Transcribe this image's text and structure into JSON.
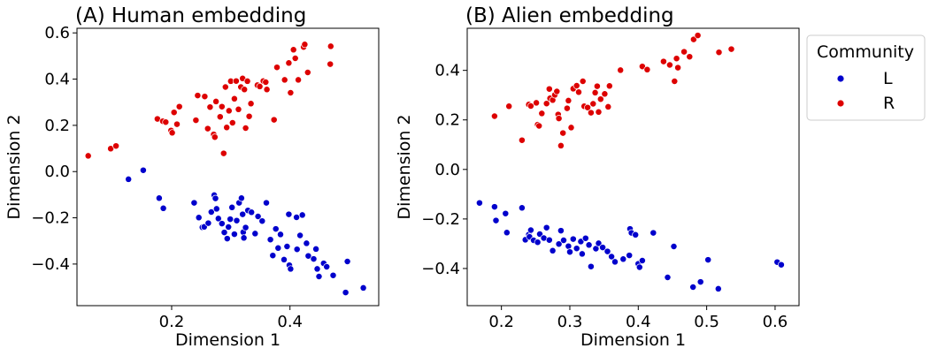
{
  "legend": {
    "title": "Community",
    "entries": [
      {
        "label": "L",
        "color": "#0000cc"
      },
      {
        "label": "R",
        "color": "#dd0000"
      }
    ]
  },
  "chart_data": [
    {
      "type": "scatter",
      "title": "(A) Human embedding",
      "xlabel": "Dimension 1",
      "ylabel": "Dimension 2",
      "xlim": [
        0.04,
        0.55
      ],
      "ylim": [
        -0.58,
        0.62
      ],
      "xticks": [
        0.2,
        0.4
      ],
      "xtick_labels": [
        "0.2",
        "0.4"
      ],
      "yticks": [
        -0.4,
        -0.2,
        0.0,
        0.2,
        0.4,
        0.6
      ],
      "ytick_labels": [
        "−0.4",
        "−0.2",
        "0.0",
        "0.2",
        "0.4",
        "0.6"
      ],
      "grid": false,
      "series": [
        {
          "name": "L",
          "color": "#0000cc",
          "points": [
            [
              0.127,
              -0.033
            ],
            [
              0.152,
              0.006
            ],
            [
              0.179,
              -0.115
            ],
            [
              0.186,
              -0.159
            ],
            [
              0.238,
              -0.135
            ],
            [
              0.246,
              -0.199
            ],
            [
              0.252,
              -0.241
            ],
            [
              0.255,
              -0.239
            ],
            [
              0.262,
              -0.223
            ],
            [
              0.267,
              -0.175
            ],
            [
              0.272,
              -0.102
            ],
            [
              0.274,
              -0.116
            ],
            [
              0.276,
              -0.161
            ],
            [
              0.279,
              -0.203
            ],
            [
              0.285,
              -0.225
            ],
            [
              0.289,
              -0.263
            ],
            [
              0.294,
              -0.29
            ],
            [
              0.296,
              -0.24
            ],
            [
              0.299,
              -0.206
            ],
            [
              0.302,
              -0.155
            ],
            [
              0.306,
              -0.271
            ],
            [
              0.31,
              -0.212
            ],
            [
              0.314,
              -0.135
            ],
            [
              0.318,
              -0.115
            ],
            [
              0.32,
              -0.185
            ],
            [
              0.321,
              -0.262
            ],
            [
              0.322,
              -0.287
            ],
            [
              0.325,
              -0.242
            ],
            [
              0.329,
              -0.168
            ],
            [
              0.335,
              -0.176
            ],
            [
              0.341,
              -0.268
            ],
            [
              0.346,
              -0.194
            ],
            [
              0.353,
              -0.214
            ],
            [
              0.36,
              -0.135
            ],
            [
              0.367,
              -0.294
            ],
            [
              0.371,
              -0.363
            ],
            [
              0.376,
              -0.248
            ],
            [
              0.38,
              -0.331
            ],
            [
              0.384,
              -0.272
            ],
            [
              0.39,
              -0.381
            ],
            [
              0.395,
              -0.324
            ],
            [
              0.398,
              -0.185
            ],
            [
              0.399,
              -0.405
            ],
            [
              0.401,
              -0.421
            ],
            [
              0.411,
              -0.198
            ],
            [
              0.412,
              -0.336
            ],
            [
              0.417,
              -0.276
            ],
            [
              0.421,
              -0.188
            ],
            [
              0.428,
              -0.31
            ],
            [
              0.431,
              -0.365
            ],
            [
              0.44,
              -0.378
            ],
            [
              0.444,
              -0.335
            ],
            [
              0.446,
              -0.421
            ],
            [
              0.449,
              -0.454
            ],
            [
              0.457,
              -0.397
            ],
            [
              0.462,
              -0.412
            ],
            [
              0.473,
              -0.449
            ],
            [
              0.494,
              -0.523
            ],
            [
              0.497,
              -0.389
            ],
            [
              0.524,
              -0.503
            ]
          ]
        },
        {
          "name": "R",
          "color": "#dd0000",
          "points": [
            [
              0.059,
              0.068
            ],
            [
              0.097,
              0.099
            ],
            [
              0.106,
              0.111
            ],
            [
              0.176,
              0.228
            ],
            [
              0.185,
              0.218
            ],
            [
              0.19,
              0.214
            ],
            [
              0.199,
              0.178
            ],
            [
              0.201,
              0.168
            ],
            [
              0.204,
              0.256
            ],
            [
              0.209,
              0.205
            ],
            [
              0.213,
              0.281
            ],
            [
              0.241,
              0.222
            ],
            [
              0.244,
              0.329
            ],
            [
              0.256,
              0.325
            ],
            [
              0.261,
              0.186
            ],
            [
              0.265,
              0.279
            ],
            [
              0.271,
              0.161
            ],
            [
              0.273,
              0.149
            ],
            [
              0.275,
              0.303
            ],
            [
              0.282,
              0.237
            ],
            [
              0.285,
              0.281
            ],
            [
              0.288,
              0.079
            ],
            [
              0.291,
              0.366
            ],
            [
              0.293,
              0.191
            ],
            [
              0.297,
              0.263
            ],
            [
              0.3,
              0.391
            ],
            [
              0.303,
              0.211
            ],
            [
              0.306,
              0.315
            ],
            [
              0.309,
              0.392
            ],
            [
              0.313,
              0.269
            ],
            [
              0.317,
              0.366
            ],
            [
              0.32,
              0.403
            ],
            [
              0.323,
              0.355
            ],
            [
              0.325,
              0.188
            ],
            [
              0.328,
              0.391
            ],
            [
              0.331,
              0.239
            ],
            [
              0.334,
              0.294
            ],
            [
              0.345,
              0.374
            ],
            [
              0.349,
              0.368
            ],
            [
              0.355,
              0.392
            ],
            [
              0.359,
              0.387
            ],
            [
              0.361,
              0.355
            ],
            [
              0.373,
              0.224
            ],
            [
              0.378,
              0.451
            ],
            [
              0.391,
              0.397
            ],
            [
              0.398,
              0.47
            ],
            [
              0.401,
              0.341
            ],
            [
              0.406,
              0.527
            ],
            [
              0.409,
              0.49
            ],
            [
              0.414,
              0.397
            ],
            [
              0.423,
              0.539
            ],
            [
              0.425,
              0.55
            ],
            [
              0.43,
              0.429
            ],
            [
              0.468,
              0.465
            ],
            [
              0.469,
              0.542
            ]
          ]
        }
      ]
    },
    {
      "type": "scatter",
      "title": "(B) Alien embedding",
      "xlabel": "Dimension 1",
      "ylabel": "Dimension 2",
      "xlim": [
        0.15,
        0.635
      ],
      "ylim": [
        -0.55,
        0.57
      ],
      "xticks": [
        0.2,
        0.3,
        0.4,
        0.5,
        0.6
      ],
      "xtick_labels": [
        "0.2",
        "0.3",
        "0.4",
        "0.5",
        "0.6"
      ],
      "yticks": [
        -0.4,
        -0.2,
        0.0,
        0.2,
        0.4
      ],
      "ytick_labels": [
        "−0.4",
        "−0.2",
        "0.0",
        "0.2",
        "0.4"
      ],
      "grid": false,
      "series": [
        {
          "name": "L",
          "color": "#0000cc",
          "points": [
            [
              0.168,
              -0.135
            ],
            [
              0.19,
              -0.151
            ],
            [
              0.192,
              -0.206
            ],
            [
              0.206,
              -0.178
            ],
            [
              0.208,
              -0.255
            ],
            [
              0.23,
              -0.155
            ],
            [
              0.235,
              -0.284
            ],
            [
              0.24,
              -0.263
            ],
            [
              0.241,
              -0.272
            ],
            [
              0.243,
              -0.245
            ],
            [
              0.247,
              -0.286
            ],
            [
              0.253,
              -0.294
            ],
            [
              0.256,
              -0.261
            ],
            [
              0.262,
              -0.277
            ],
            [
              0.266,
              -0.235
            ],
            [
              0.27,
              -0.285
            ],
            [
              0.275,
              -0.328
            ],
            [
              0.284,
              -0.301
            ],
            [
              0.287,
              -0.247
            ],
            [
              0.291,
              -0.286
            ],
            [
              0.298,
              -0.31
            ],
            [
              0.3,
              -0.333
            ],
            [
              0.305,
              -0.281
            ],
            [
              0.31,
              -0.319
            ],
            [
              0.316,
              -0.291
            ],
            [
              0.318,
              -0.341
            ],
            [
              0.323,
              -0.278
            ],
            [
              0.328,
              -0.305
            ],
            [
              0.331,
              -0.392
            ],
            [
              0.338,
              -0.32
            ],
            [
              0.342,
              -0.298
            ],
            [
              0.348,
              -0.315
            ],
            [
              0.355,
              -0.331
            ],
            [
              0.361,
              -0.352
            ],
            [
              0.366,
              -0.373
            ],
            [
              0.378,
              -0.362
            ],
            [
              0.387,
              -0.347
            ],
            [
              0.388,
              -0.24
            ],
            [
              0.39,
              -0.256
            ],
            [
              0.396,
              -0.264
            ],
            [
              0.4,
              -0.381
            ],
            [
              0.402,
              -0.395
            ],
            [
              0.406,
              -0.368
            ],
            [
              0.422,
              -0.256
            ],
            [
              0.443,
              -0.436
            ],
            [
              0.452,
              -0.311
            ],
            [
              0.48,
              -0.475
            ],
            [
              0.491,
              -0.454
            ],
            [
              0.502,
              -0.365
            ],
            [
              0.517,
              -0.482
            ],
            [
              0.603,
              -0.374
            ],
            [
              0.609,
              -0.385
            ]
          ]
        },
        {
          "name": "R",
          "color": "#dd0000",
          "points": [
            [
              0.19,
              0.215
            ],
            [
              0.211,
              0.255
            ],
            [
              0.23,
              0.118
            ],
            [
              0.24,
              0.262
            ],
            [
              0.243,
              0.256
            ],
            [
              0.251,
              0.269
            ],
            [
              0.253,
              0.181
            ],
            [
              0.255,
              0.176
            ],
            [
              0.259,
              0.226
            ],
            [
              0.266,
              0.266
            ],
            [
              0.27,
              0.325
            ],
            [
              0.271,
              0.287
            ],
            [
              0.275,
              0.28
            ],
            [
              0.278,
              0.301
            ],
            [
              0.281,
              0.315
            ],
            [
              0.283,
              0.222
            ],
            [
              0.284,
              0.206
            ],
            [
              0.287,
              0.096
            ],
            [
              0.29,
              0.147
            ],
            [
              0.296,
              0.247
            ],
            [
              0.298,
              0.278
            ],
            [
              0.302,
              0.169
            ],
            [
              0.305,
              0.326
            ],
            [
              0.31,
              0.338
            ],
            [
              0.313,
              0.312
            ],
            [
              0.319,
              0.356
            ],
            [
              0.321,
              0.255
            ],
            [
              0.326,
              0.25
            ],
            [
              0.331,
              0.229
            ],
            [
              0.334,
              0.265
            ],
            [
              0.337,
              0.31
            ],
            [
              0.34,
              0.336
            ],
            [
              0.342,
              0.232
            ],
            [
              0.345,
              0.284
            ],
            [
              0.351,
              0.305
            ],
            [
              0.356,
              0.253
            ],
            [
              0.358,
              0.337
            ],
            [
              0.374,
              0.401
            ],
            [
              0.406,
              0.416
            ],
            [
              0.413,
              0.403
            ],
            [
              0.437,
              0.436
            ],
            [
              0.446,
              0.422
            ],
            [
              0.453,
              0.356
            ],
            [
              0.456,
              0.448
            ],
            [
              0.458,
              0.411
            ],
            [
              0.467,
              0.475
            ],
            [
              0.475,
              0.455
            ],
            [
              0.481,
              0.525
            ],
            [
              0.487,
              0.541
            ],
            [
              0.518,
              0.473
            ],
            [
              0.536,
              0.486
            ]
          ]
        }
      ]
    }
  ]
}
